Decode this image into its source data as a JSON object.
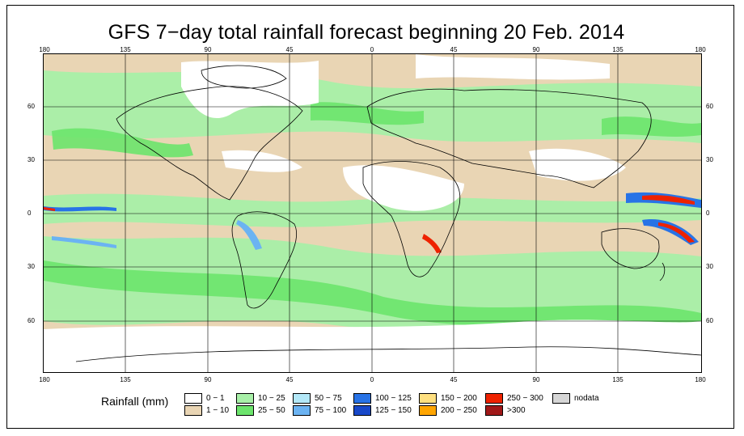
{
  "title": "GFS 7−day total rainfall forecast beginning 20 Feb. 2014",
  "axis": {
    "lon_ticks": [
      "180",
      "135",
      "90",
      "45",
      "0",
      "45",
      "90",
      "135",
      "180"
    ],
    "lat_ticks": [
      "60",
      "30",
      "0",
      "30",
      "60"
    ]
  },
  "legend": {
    "title": "Rainfall (mm)",
    "items": [
      {
        "label": "0 − 1",
        "color": "#ffffff"
      },
      {
        "label": "1 − 10",
        "color": "#e9d5b4"
      },
      {
        "label": "10 − 25",
        "color": "#a8f0a8"
      },
      {
        "label": "25 − 50",
        "color": "#6ce46c"
      },
      {
        "label": "50 − 75",
        "color": "#b3e8f8"
      },
      {
        "label": "75 − 100",
        "color": "#6bb3f2"
      },
      {
        "label": "100 − 125",
        "color": "#2873e6"
      },
      {
        "label": "125 − 150",
        "color": "#1848c8"
      },
      {
        "label": "150 − 200",
        "color": "#ffe080"
      },
      {
        "label": "200 − 250",
        "color": "#ffa500"
      },
      {
        "label": "250 − 300",
        "color": "#ee2200"
      },
      {
        "label": ">300",
        "color": "#a01818"
      },
      {
        "label": "nodata",
        "color": "#d6d6d6"
      }
    ]
  },
  "colors": {
    "land_outline": "#000000",
    "grid": "#000000",
    "dry": "#ffffff",
    "light_rain": "#e9d5b4",
    "moderate_rain": "#a8f0a8",
    "heavy_rain": "#6ce46c"
  }
}
